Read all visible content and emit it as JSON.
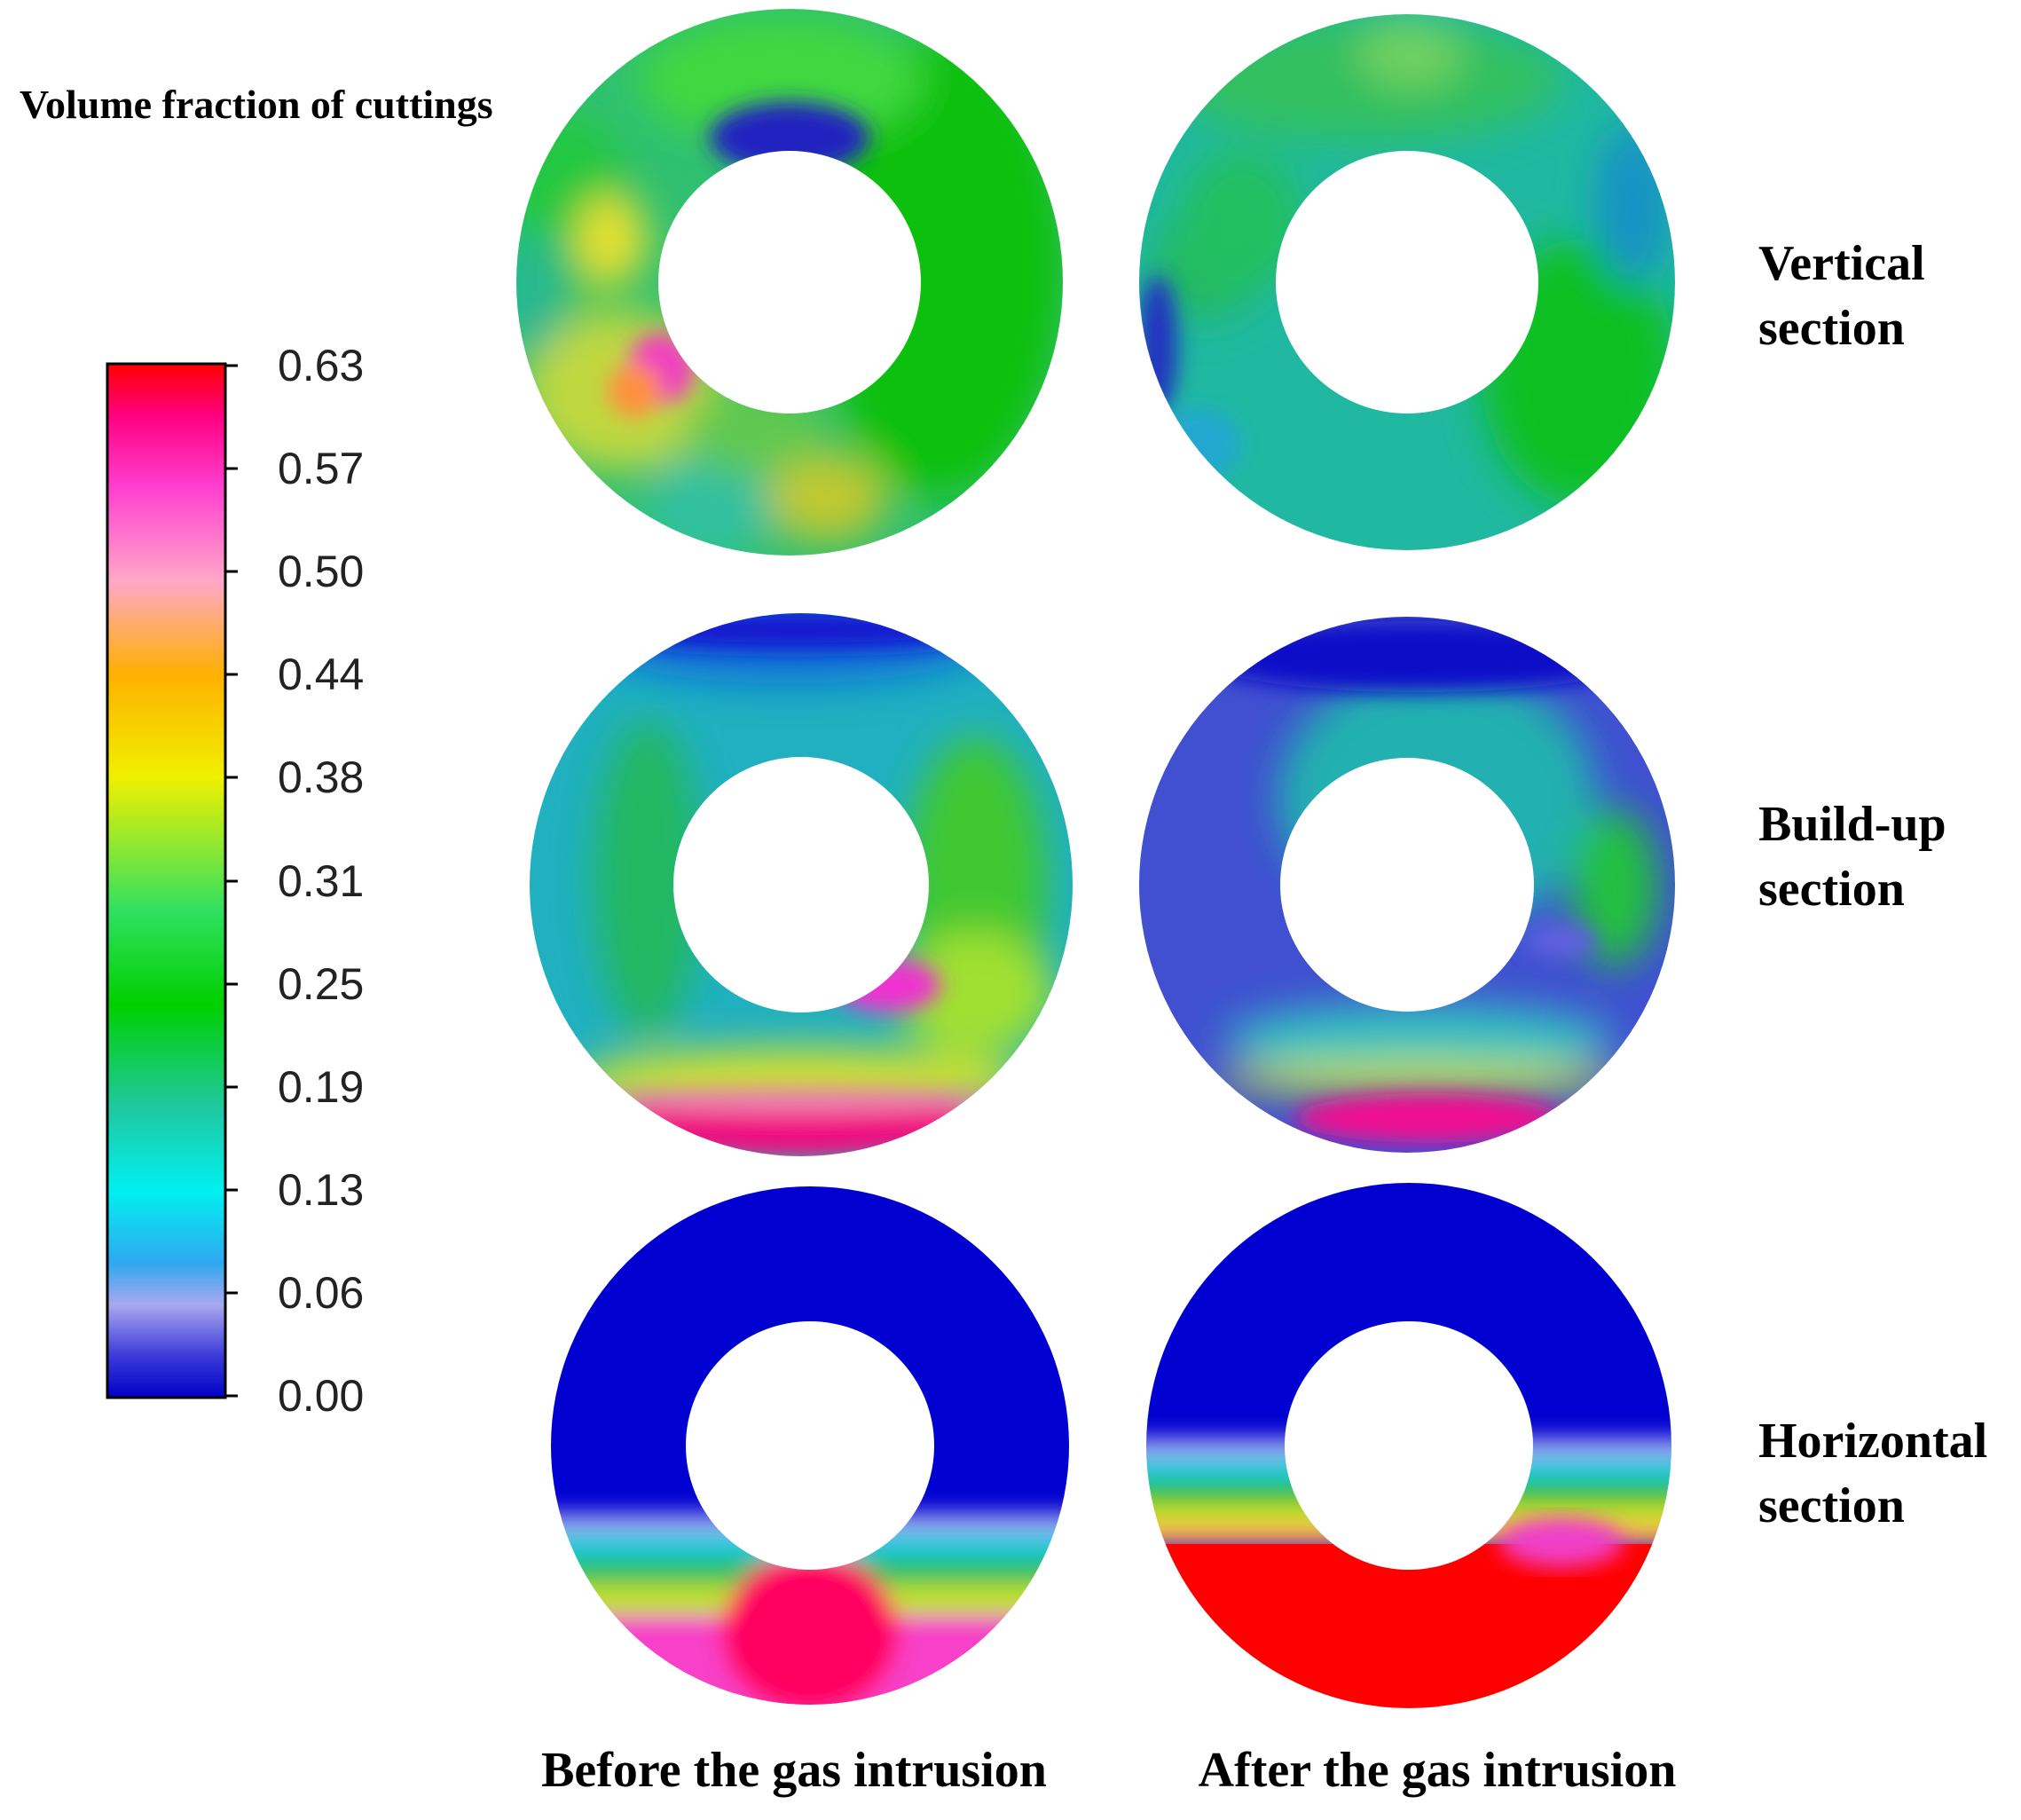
{
  "title": "Volume fraction of cuttings",
  "colorbar": {
    "ticks": [
      "0.63",
      "0.57",
      "0.50",
      "0.44",
      "0.38",
      "0.31",
      "0.25",
      "0.19",
      "0.13",
      "0.06",
      "0.00"
    ],
    "colors": [
      "#0000c8",
      "#9ba0f0",
      "#2aa0f0",
      "#00f0f0",
      "#18c896",
      "#00d000",
      "#60e000",
      "#f0f000",
      "#ffb000",
      "#ff9080",
      "#ff40c0",
      "#ff0080",
      "#ff0000"
    ]
  },
  "rows": [
    {
      "label_line1": "Vertical",
      "label_line2": "section"
    },
    {
      "label_line1": "Build-up",
      "label_line2": "section"
    },
    {
      "label_line1": "Horizontal",
      "label_line2": "section"
    }
  ],
  "columns": [
    {
      "label": "Before the gas intrusion"
    },
    {
      "label": "After the gas intrusion"
    }
  ]
}
